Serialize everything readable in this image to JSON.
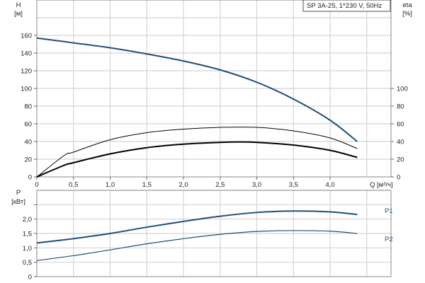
{
  "chart_data": [
    {
      "type": "line",
      "title": "SP 3A-25, 1*230 V, 50Hz",
      "xlabel": "Q [м³/ч]",
      "ylabel": "H",
      "ylabel_unit": "[м]",
      "y2label": "eta",
      "y2label_unit": "[%]",
      "xlim": [
        0,
        4.83
      ],
      "ylim": [
        0,
        200
      ],
      "y2lim": [
        0,
        200
      ],
      "grid": true,
      "xticks": [
        "0",
        "0,5",
        "1,0",
        "1,5",
        "2,0",
        "2,5",
        "3,0",
        "3,5",
        "4,0"
      ],
      "xtick_values": [
        0,
        0.5,
        1,
        1.5,
        2,
        2.5,
        3,
        3.5,
        4
      ],
      "yticks": [
        "0",
        "20",
        "40",
        "60",
        "80",
        "100",
        "120",
        "140",
        "160"
      ],
      "y2ticks": [
        "0",
        "20",
        "40",
        "60",
        "80",
        "100"
      ],
      "series": [
        {
          "axis": "H",
          "color": "#1f4e79",
          "x": [
            0,
            0.37,
            0.5,
            1.0,
            1.5,
            2.0,
            2.5,
            3.0,
            3.5,
            4.0,
            4.37
          ],
          "values": [
            157,
            153,
            151.5,
            146,
            139,
            131,
            121,
            107,
            88,
            64,
            40
          ]
        },
        {
          "axis": "eta",
          "color": "#000000",
          "x": [
            0,
            0.37,
            0.5,
            1.0,
            1.5,
            2.0,
            2.5,
            3.0,
            3.5,
            4.0,
            4.37
          ],
          "values": [
            0,
            24,
            28,
            42,
            50,
            54,
            56,
            56,
            52,
            44,
            32
          ]
        },
        {
          "axis": "eta",
          "color": "#000000",
          "x": [
            0,
            0.37,
            0.5,
            1.0,
            1.5,
            2.0,
            2.5,
            2.75,
            3.0,
            3.5,
            4.0,
            4.37
          ],
          "values": [
            0,
            13,
            16,
            26,
            33,
            37,
            39,
            39.5,
            39,
            36,
            30,
            22
          ]
        }
      ]
    },
    {
      "type": "line",
      "ylabel": "P",
      "ylabel_unit": "[кВт]",
      "xlim": [
        0,
        4.83
      ],
      "ylim": [
        0,
        3.0
      ],
      "grid": true,
      "yticks": [
        "0",
        "0,5",
        "1,0",
        "1,5",
        "2,0"
      ],
      "series": [
        {
          "name": "P1",
          "color": "#1f4e79",
          "x": [
            0,
            0.37,
            0.5,
            1.0,
            1.5,
            2.0,
            2.5,
            3.0,
            3.5,
            4.0,
            4.37
          ],
          "values": [
            1.17,
            1.28,
            1.32,
            1.5,
            1.72,
            1.92,
            2.1,
            2.23,
            2.28,
            2.25,
            2.16
          ]
        },
        {
          "name": "P2",
          "color": "#1f4e79",
          "x": [
            0,
            0.5,
            1.0,
            1.5,
            2.0,
            2.5,
            3.0,
            3.5,
            4.0,
            4.37
          ],
          "values": [
            0.56,
            0.73,
            0.93,
            1.14,
            1.32,
            1.47,
            1.57,
            1.6,
            1.58,
            1.5
          ]
        }
      ]
    }
  ]
}
